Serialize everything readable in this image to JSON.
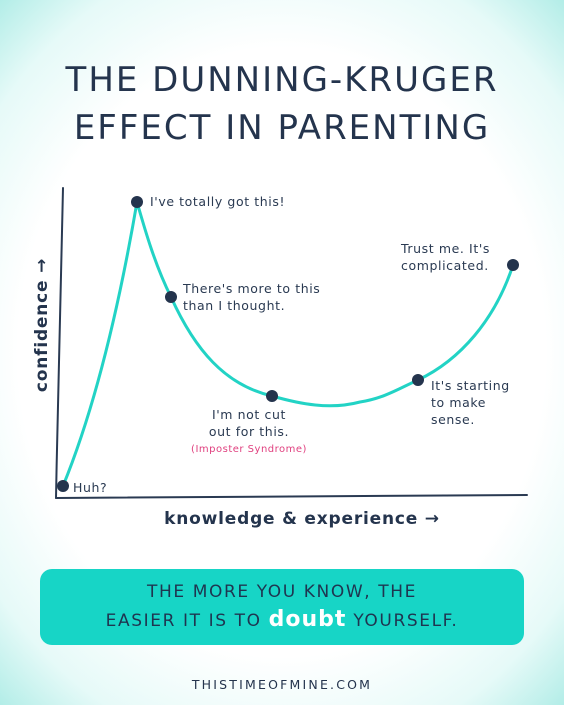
{
  "title": {
    "line1": "THE DUNNING-KRUGER",
    "line2": "EFFECT IN PARENTING"
  },
  "chart_data": {
    "type": "line",
    "xlabel": "knowledge & experience →",
    "ylabel": "confidence →",
    "points": [
      {
        "label_lines": [
          "Huh?"
        ]
      },
      {
        "label_lines": [
          "I've totally got this!"
        ]
      },
      {
        "label_lines": [
          "There's more to this",
          "than I thought."
        ]
      },
      {
        "label_lines": [
          "I'm not cut",
          "out for this."
        ],
        "sublabel": "(Imposter Syndrome)"
      },
      {
        "label_lines": [
          "It's starting",
          "to make",
          "sense."
        ]
      },
      {
        "label_lines": [
          "Trust me. It's",
          "complicated."
        ]
      }
    ],
    "colors": {
      "curve": "#22d3c5",
      "axes": "#2a3a52",
      "dots": "#24344d",
      "sublabel": "#e0407f"
    }
  },
  "banner": {
    "line1": "THE MORE YOU KNOW, THE",
    "line2_pre": "EASIER IT IS TO ",
    "line2_emphasis": "doubt",
    "line2_post": " YOURSELF."
  },
  "footer": "THISTIMEOFMINE.COM"
}
